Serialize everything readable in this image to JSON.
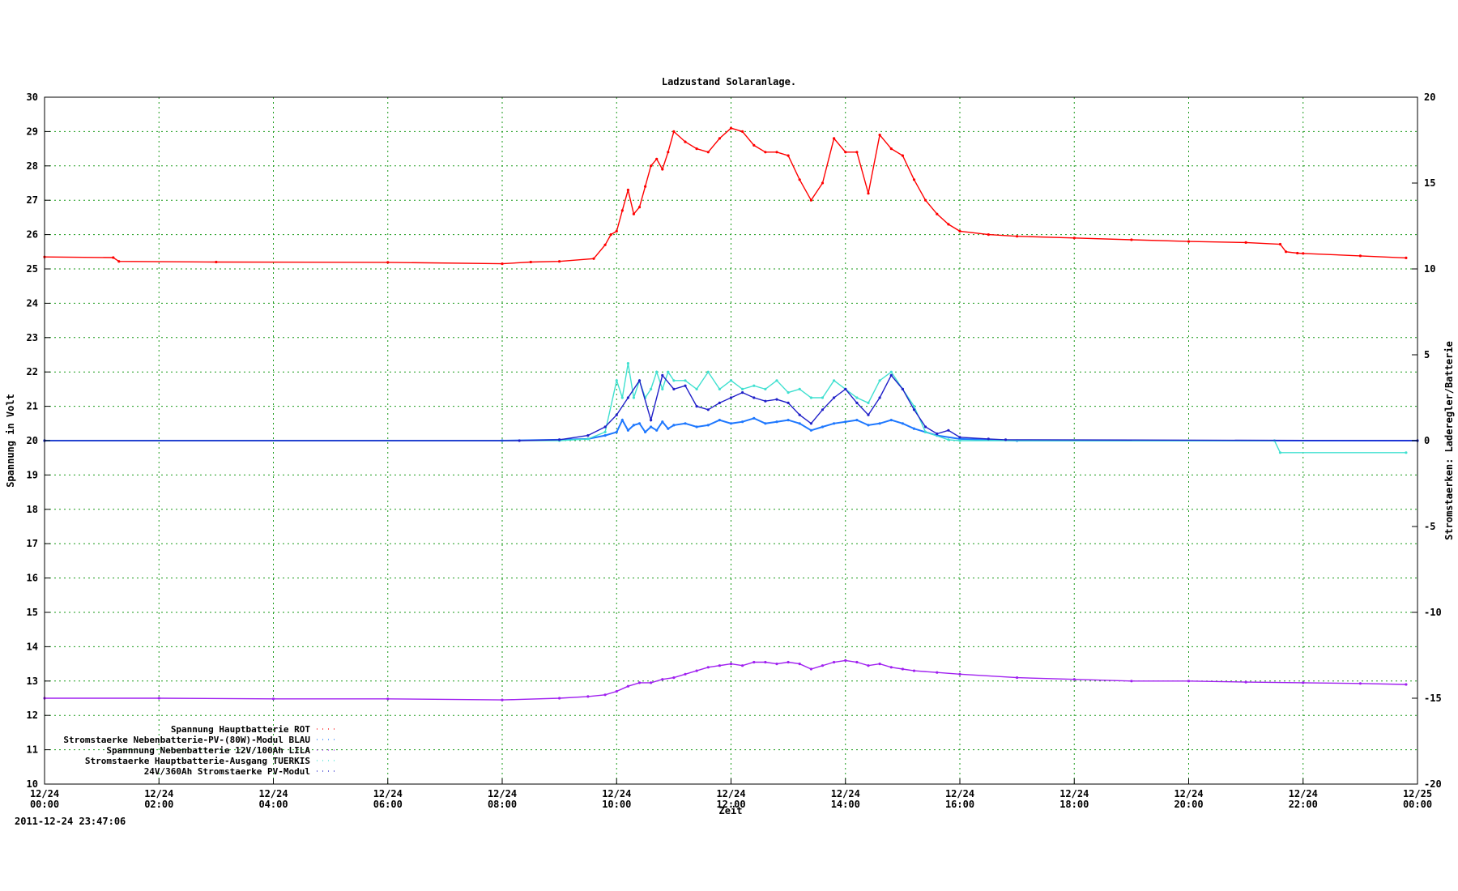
{
  "chart_data": {
    "type": "scatter",
    "title": "Ladzustand Solaranlage.",
    "xlabel": "Zeit",
    "ylabel": "Spannung in Volt",
    "y2label": "Stromstaerken: Laderegler/Batterie",
    "timestamp": "2011-12-24 23:47:06",
    "xlim": [
      0,
      24
    ],
    "ylim": [
      10,
      30
    ],
    "y2lim": [
      -20,
      20
    ],
    "grid": true,
    "legend_position": "bottom-left",
    "x_ticks": [
      {
        "value": 0,
        "date": "12/24",
        "time": "00:00"
      },
      {
        "value": 2,
        "date": "12/24",
        "time": "02:00"
      },
      {
        "value": 4,
        "date": "12/24",
        "time": "04:00"
      },
      {
        "value": 6,
        "date": "12/24",
        "time": "06:00"
      },
      {
        "value": 8,
        "date": "12/24",
        "time": "08:00"
      },
      {
        "value": 10,
        "date": "12/24",
        "time": "10:00"
      },
      {
        "value": 12,
        "date": "12/24",
        "time": "12:00"
      },
      {
        "value": 14,
        "date": "12/24",
        "time": "14:00"
      },
      {
        "value": 16,
        "date": "12/24",
        "time": "16:00"
      },
      {
        "value": 18,
        "date": "12/24",
        "time": "18:00"
      },
      {
        "value": 20,
        "date": "12/24",
        "time": "20:00"
      },
      {
        "value": 22,
        "date": "12/24",
        "time": "22:00"
      },
      {
        "value": 24,
        "date": "12/25",
        "time": "00:00"
      }
    ],
    "y_ticks": [
      "10",
      "11",
      "12",
      "13",
      "14",
      "15",
      "16",
      "17",
      "18",
      "19",
      "20",
      "21",
      "22",
      "23",
      "24",
      "25",
      "26",
      "27",
      "28",
      "29",
      "30"
    ],
    "y2_ticks": [
      "-20",
      "-15",
      "-10",
      "-5",
      "0",
      "5",
      "10",
      "15",
      "20"
    ],
    "series": [
      {
        "name": "Spannung Hauptbatterie ROT",
        "axis": "y",
        "color": "#ff0000",
        "x": [
          0,
          1.2,
          1.3,
          3,
          6,
          8,
          8.5,
          9,
          9.6,
          9.8,
          9.9,
          10.0,
          10.1,
          10.2,
          10.3,
          10.4,
          10.5,
          10.6,
          10.7,
          10.8,
          10.9,
          11.0,
          11.2,
          11.4,
          11.6,
          11.8,
          12.0,
          12.2,
          12.4,
          12.6,
          12.8,
          13.0,
          13.2,
          13.4,
          13.6,
          13.8,
          14.0,
          14.2,
          14.4,
          14.6,
          14.8,
          15.0,
          15.2,
          15.4,
          15.6,
          15.8,
          16.0,
          16.5,
          17,
          18,
          19,
          20,
          21,
          21.6,
          21.7,
          21.9,
          22,
          23,
          23.8
        ],
        "y": [
          25.35,
          25.33,
          25.22,
          25.2,
          25.19,
          25.15,
          25.2,
          25.22,
          25.3,
          25.7,
          26.0,
          26.1,
          26.7,
          27.3,
          26.6,
          26.8,
          27.4,
          28.0,
          28.2,
          27.9,
          28.4,
          29.0,
          28.7,
          28.5,
          28.4,
          28.8,
          29.1,
          29.0,
          28.6,
          28.4,
          28.4,
          28.3,
          27.6,
          27.0,
          27.5,
          28.8,
          28.4,
          28.4,
          27.2,
          28.9,
          28.5,
          28.3,
          27.6,
          27.0,
          26.6,
          26.3,
          26.1,
          26.0,
          25.95,
          25.9,
          25.85,
          25.8,
          25.77,
          25.72,
          25.5,
          25.46,
          25.45,
          25.38,
          25.32
        ]
      },
      {
        "name": "Stromstaerke Nebenbatterie-PV-(80W)-Modul BLAU",
        "axis": "y2",
        "color": "#1e78ff",
        "x": [
          0,
          8.0,
          9.0,
          9.5,
          9.8,
          10.0,
          10.1,
          10.2,
          10.3,
          10.4,
          10.5,
          10.6,
          10.7,
          10.8,
          10.9,
          11.0,
          11.2,
          11.4,
          11.6,
          11.8,
          12.0,
          12.2,
          12.4,
          12.6,
          12.8,
          13.0,
          13.2,
          13.4,
          13.6,
          13.8,
          14.0,
          14.2,
          14.4,
          14.6,
          14.8,
          15.0,
          15.2,
          15.4,
          15.6,
          16.0,
          17,
          24
        ],
        "y": [
          0,
          0,
          0.05,
          0.1,
          0.3,
          0.5,
          1.2,
          0.6,
          0.9,
          1.0,
          0.5,
          0.8,
          0.6,
          1.1,
          0.7,
          0.9,
          1.0,
          0.8,
          0.9,
          1.2,
          1.0,
          1.1,
          1.3,
          1.0,
          1.1,
          1.2,
          1.0,
          0.6,
          0.8,
          1.0,
          1.1,
          1.2,
          0.9,
          1.0,
          1.2,
          1.0,
          0.7,
          0.5,
          0.3,
          0.1,
          0,
          0
        ]
      },
      {
        "name": "Spannnung Nebenbatterie 12V/100Ah LILA",
        "axis": "y",
        "color": "#a020f0",
        "x": [
          0,
          2,
          4,
          6,
          8,
          9,
          9.5,
          9.8,
          10.0,
          10.2,
          10.4,
          10.6,
          10.8,
          11.0,
          11.2,
          11.4,
          11.6,
          11.8,
          12.0,
          12.2,
          12.4,
          12.6,
          12.8,
          13.0,
          13.2,
          13.4,
          13.6,
          13.8,
          14.0,
          14.2,
          14.4,
          14.6,
          14.8,
          15.0,
          15.2,
          15.6,
          16.0,
          17,
          18,
          19,
          20,
          21,
          22,
          23,
          23.8
        ],
        "y": [
          12.5,
          12.5,
          12.48,
          12.48,
          12.45,
          12.5,
          12.55,
          12.6,
          12.7,
          12.85,
          12.95,
          12.95,
          13.05,
          13.1,
          13.2,
          13.3,
          13.4,
          13.45,
          13.5,
          13.45,
          13.55,
          13.55,
          13.5,
          13.55,
          13.5,
          13.35,
          13.45,
          13.55,
          13.6,
          13.55,
          13.45,
          13.5,
          13.4,
          13.35,
          13.3,
          13.25,
          13.2,
          13.1,
          13.05,
          13.0,
          13.0,
          12.97,
          12.95,
          12.93,
          12.9
        ]
      },
      {
        "name": "Stromstaerke Hauptbatterie-Ausgang TUERKIS",
        "axis": "y2",
        "color": "#40e0d0",
        "x": [
          0,
          9.0,
          9.5,
          9.8,
          10.0,
          10.1,
          10.2,
          10.3,
          10.4,
          10.5,
          10.6,
          10.7,
          10.8,
          10.9,
          11.0,
          11.2,
          11.4,
          11.6,
          11.8,
          12.0,
          12.2,
          12.4,
          12.6,
          12.8,
          13.0,
          13.2,
          13.4,
          13.6,
          13.8,
          14.0,
          14.2,
          14.4,
          14.6,
          14.8,
          15.0,
          15.2,
          15.4,
          15.8,
          16.0,
          21.5,
          21.6,
          23.8
        ],
        "y": [
          0,
          0,
          0.1,
          0.5,
          3.5,
          2.5,
          4.5,
          2.5,
          3.5,
          2.5,
          3.0,
          4.0,
          3.0,
          4.0,
          3.5,
          3.5,
          3.0,
          4.0,
          3.0,
          3.5,
          3.0,
          3.2,
          3.0,
          3.5,
          2.8,
          3.0,
          2.5,
          2.5,
          3.5,
          3.0,
          2.5,
          2.2,
          3.5,
          4.0,
          3.0,
          2.0,
          0.5,
          0.05,
          0,
          0,
          -0.7,
          -0.7
        ]
      },
      {
        "name": "24V/360Ah Stromstaerke PV-Modul",
        "axis": "y2",
        "color": "#2020c8",
        "x": [
          0,
          8.3,
          9.0,
          9.5,
          9.8,
          10.0,
          10.2,
          10.4,
          10.6,
          10.8,
          11.0,
          11.2,
          11.4,
          11.6,
          11.8,
          12.0,
          12.2,
          12.4,
          12.6,
          12.8,
          13.0,
          13.2,
          13.4,
          13.6,
          13.8,
          14.0,
          14.2,
          14.4,
          14.6,
          14.8,
          15.0,
          15.2,
          15.4,
          15.6,
          15.8,
          16.0,
          16.5,
          16.8,
          24
        ],
        "y": [
          0,
          0,
          0.05,
          0.3,
          0.8,
          1.5,
          2.5,
          3.5,
          1.2,
          3.8,
          3.0,
          3.2,
          2.0,
          1.8,
          2.2,
          2.5,
          2.8,
          2.5,
          2.3,
          2.4,
          2.2,
          1.5,
          1.0,
          1.8,
          2.5,
          3.0,
          2.2,
          1.5,
          2.5,
          3.8,
          3.0,
          1.8,
          0.8,
          0.4,
          0.6,
          0.2,
          0.1,
          0.05,
          0
        ]
      }
    ]
  }
}
